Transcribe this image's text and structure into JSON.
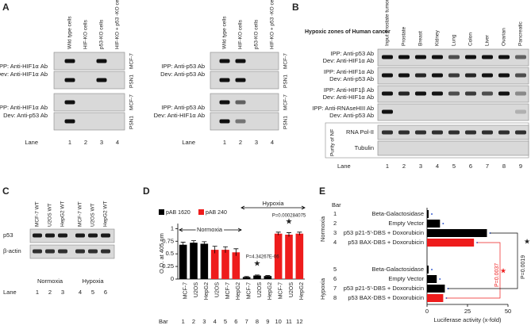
{
  "panel_a": {
    "label": "A",
    "columns": [
      "Wild type cells",
      "HIF-KO cells",
      "p53-KO cells",
      "HIF-KO + p53 -KO cells"
    ],
    "groups": [
      {
        "ipp": "IPP: Anti-HIF1α Ab",
        "dev": "Dev: Anti-HIF1α Ab",
        "cell_lines": [
          "MCF-7",
          "PSN1"
        ]
      },
      {
        "ipp": "IPP: Anti-HIF1α Ab",
        "dev": "Dev: Anti-p53 Ab",
        "cell_lines": [
          "MCF-7",
          "PSN1"
        ]
      },
      {
        "ipp": "IPP: Anti-p53 Ab",
        "dev": "Dev: Anti-p53 Ab",
        "cell_lines": [
          "MCF-7",
          "PSN1"
        ]
      },
      {
        "ipp": "IPP: Anti-p53 Ab",
        "dev": "Dev: Anti-HIF1α Ab",
        "cell_lines": [
          "MCF-7",
          "PSN1"
        ]
      }
    ],
    "lane_label": "Lane",
    "lanes": [
      1,
      2,
      3,
      4
    ]
  },
  "panel_b": {
    "label": "B",
    "title": "Hypoxic zones of Human cancer",
    "columns": [
      "Input Prostate tumor",
      "Prostate",
      "Breast",
      "Kidney",
      "Lung",
      "Colon",
      "Liver",
      "Ovarian",
      "Pancreatic"
    ],
    "rows": [
      {
        "ipp": "IPP: Anti-p53 Ab",
        "dev": "Dev: Anti-HIF1α Ab"
      },
      {
        "ipp": "IPP: Anti-HIF1α Ab",
        "dev": "Dev: Anti-p53 Ab"
      },
      {
        "ipp": "IPP: Anti-HIF1β Ab",
        "dev": "Dev: Anti-HIF1α Ab"
      },
      {
        "ipp": "IPP: Anti-RNAseHIII Ab",
        "dev": "Dev: Anti-p53 Ab"
      }
    ],
    "purity_label": "Purity of NF",
    "controls": [
      "RNA Pol-II",
      "Tubulin"
    ],
    "lane_label": "Lane",
    "lanes": [
      1,
      2,
      3,
      4,
      5,
      6,
      7,
      8,
      9
    ]
  },
  "panel_c": {
    "label": "C",
    "columns": [
      "MCF-7 WT",
      "U2OS WT",
      "HepG2 WT",
      "MCF-7 WT",
      "U2OS WT",
      "HepG2 WT"
    ],
    "rows": [
      "p53",
      "β-actin"
    ],
    "conditions": [
      "Normoxia",
      "Hypoxia"
    ],
    "lane_label": "Lane",
    "lanes": [
      1,
      2,
      3,
      4,
      5,
      6
    ]
  },
  "chart_data": [
    {
      "type": "bar",
      "panel_label": "D",
      "y_label": "O.D. at 405 nm",
      "categories": [
        "MCF-7",
        "U2OS",
        "HepG2",
        "U2OS",
        "MCF-7",
        "HepG2",
        "MCF-7",
        "U2OS",
        "HepG2",
        "MCF-7",
        "U2OS",
        "HepG2"
      ],
      "bar_label": "Bar",
      "bar_numbers": [
        1,
        2,
        3,
        4,
        5,
        6,
        7,
        8,
        9,
        10,
        11,
        12
      ],
      "series": [
        {
          "name": "pAB 1620",
          "color": "#000000",
          "values": [
            0.68,
            0.72,
            0.7,
            null,
            null,
            null,
            0.04,
            0.07,
            0.06,
            null,
            null,
            null
          ],
          "errors": [
            0.05,
            0.04,
            0.04,
            null,
            null,
            null,
            0.01,
            0.01,
            0.01,
            null,
            null,
            null
          ]
        },
        {
          "name": "pAB 240",
          "color": "#ee1c1c",
          "values": [
            null,
            null,
            null,
            0.58,
            0.58,
            0.53,
            null,
            null,
            null,
            0.9,
            0.88,
            0.9
          ],
          "errors": [
            null,
            null,
            null,
            0.07,
            0.06,
            0.07,
            null,
            null,
            null,
            0.03,
            0.04,
            0.03
          ]
        }
      ],
      "ylim": [
        0,
        1.1
      ],
      "yticks": [
        0,
        0.25,
        0.5,
        0.75,
        1
      ],
      "annotations": [
        "Normoxia",
        "Hypoxia",
        "P=4.34267E-06",
        "P=0.000284075",
        "★",
        "★"
      ]
    },
    {
      "type": "hbar",
      "panel_label": "E",
      "x_label": "Luciferase activity (x-fold)",
      "categories": [
        "Beta-Galactosidase",
        "Empty Vector",
        "p53 p21-5'-DBS + Doxorubicin",
        "p53 BAX-DBS + Doxorubicin",
        "Beta-Galactosidase",
        "Empty Vector",
        "p53 p21-5'-DBS + Doxorubicin",
        "p53 BAX-DBS + Doxorubicin"
      ],
      "bar_label": "Bar",
      "bar_numbers": [
        1,
        2,
        3,
        4,
        5,
        6,
        7,
        8
      ],
      "groups": [
        "Normoxia",
        "Hypoxia"
      ],
      "values": [
        1,
        8,
        37,
        29,
        1,
        6,
        11,
        10
      ],
      "colors": [
        "#000000",
        "#000000",
        "#000000",
        "#ee1c1c",
        "#000000",
        "#000000",
        "#000000",
        "#ee1c1c"
      ],
      "xlim": [
        0,
        50
      ],
      "xticks": [
        0,
        25,
        50
      ],
      "annotations": [
        "P=0.0037",
        "P=0.0019",
        "★",
        "★"
      ]
    }
  ]
}
